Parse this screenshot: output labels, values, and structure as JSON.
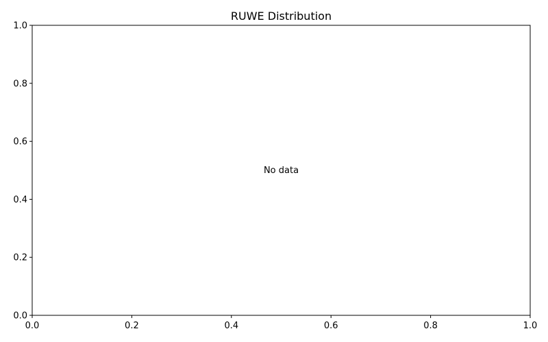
{
  "chart_data": {
    "type": "bar",
    "title": "RUWE Distribution",
    "xlabel": "",
    "ylabel": "",
    "xlim": [
      0,
      1
    ],
    "ylim": [
      0,
      1
    ],
    "x_ticks": [
      "0.0",
      "0.2",
      "0.4",
      "0.6",
      "0.8",
      "1.0"
    ],
    "y_ticks": [
      "0.0",
      "0.2",
      "0.4",
      "0.6",
      "0.8",
      "1.0"
    ],
    "grid": false,
    "series": [],
    "annotation": "No data"
  }
}
